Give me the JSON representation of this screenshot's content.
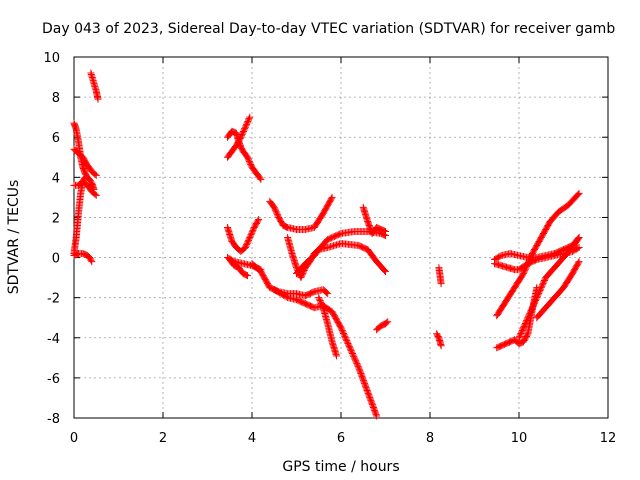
{
  "chart_data": {
    "type": "scatter",
    "title": "Day 043 of 2023, Sidereal Day-to-day VTEC variation (SDTVAR) for receiver gamb",
    "xlabel": "GPS time / hours",
    "ylabel": "SDTVAR / TECUs",
    "xlim": [
      0,
      12
    ],
    "ylim": [
      -8,
      10
    ],
    "xticks": [
      0,
      2,
      4,
      6,
      8,
      10,
      12
    ],
    "yticks": [
      -8,
      -6,
      -4,
      -2,
      0,
      2,
      4,
      6,
      8,
      10
    ],
    "grid": true,
    "marker": "+",
    "color": "#ff0000",
    "series": [
      {
        "x": [
          0.0,
          0.05,
          0.1,
          0.15,
          0.2,
          0.25,
          0.3,
          0.35,
          0.4,
          0.45
        ],
        "y": [
          6.7,
          6.4,
          5.8,
          5.0,
          4.5,
          4.2,
          4.0,
          3.9,
          3.7,
          3.4
        ]
      },
      {
        "x": [
          0.0,
          0.1,
          0.2,
          0.3,
          0.4,
          0.5
        ],
        "y": [
          5.4,
          5.2,
          5.0,
          4.6,
          4.3,
          4.1
        ]
      },
      {
        "x": [
          0.0,
          0.1,
          0.2,
          0.3,
          0.4,
          0.5
        ],
        "y": [
          3.6,
          3.6,
          3.8,
          3.6,
          3.3,
          3.1
        ]
      },
      {
        "x": [
          0.0,
          0.05,
          0.1,
          0.15,
          0.2,
          0.25
        ],
        "y": [
          0.2,
          1.0,
          2.2,
          3.2,
          3.8,
          4.0
        ]
      },
      {
        "x": [
          0.0,
          0.1,
          0.2,
          0.3,
          0.35,
          0.4
        ],
        "y": [
          0.1,
          0.2,
          0.2,
          0.1,
          0.0,
          -0.2
        ]
      },
      {
        "x": [
          0.38,
          0.42,
          0.46,
          0.5,
          0.54
        ],
        "y": [
          9.2,
          8.9,
          8.6,
          8.3,
          7.9
        ]
      },
      {
        "x": [
          3.45,
          3.55,
          3.65,
          3.7,
          3.75,
          3.8,
          3.9,
          4.0,
          4.1,
          4.2
        ],
        "y": [
          6.0,
          6.3,
          6.2,
          5.8,
          5.5,
          5.3,
          5.0,
          4.5,
          4.2,
          3.9
        ]
      },
      {
        "x": [
          3.45,
          3.55,
          3.65,
          3.75,
          3.85,
          3.95
        ],
        "y": [
          5.0,
          5.3,
          5.6,
          6.0,
          6.5,
          7.0
        ]
      },
      {
        "x": [
          3.45,
          3.55,
          3.65,
          3.75,
          3.85,
          3.95,
          4.05,
          4.15
        ],
        "y": [
          1.5,
          0.8,
          0.5,
          0.3,
          0.5,
          1.0,
          1.5,
          1.9
        ]
      },
      {
        "x": [
          3.45,
          3.6,
          3.8,
          4.0,
          4.2
        ],
        "y": [
          0.0,
          -0.2,
          -0.3,
          -0.4,
          -0.6
        ]
      },
      {
        "x": [
          3.5,
          3.6,
          3.7,
          3.8,
          3.9
        ],
        "y": [
          -0.1,
          -0.4,
          -0.5,
          -0.8,
          -0.9
        ]
      },
      {
        "x": [
          4.4,
          4.5,
          4.6,
          4.7,
          4.8,
          5.0,
          5.2,
          5.4,
          5.6,
          5.8
        ],
        "y": [
          2.8,
          2.5,
          2.0,
          1.6,
          1.5,
          1.4,
          1.4,
          1.5,
          2.2,
          3.0
        ]
      },
      {
        "x": [
          4.8,
          4.9,
          5.0,
          5.1,
          5.2,
          5.3,
          5.4,
          5.5,
          5.7,
          6.0,
          6.4,
          6.6,
          6.8,
          7.0
        ],
        "y": [
          1.0,
          0.2,
          -0.5,
          -1.0,
          -0.5,
          -0.2,
          0.2,
          0.4,
          0.5,
          0.7,
          0.6,
          0.4,
          -0.2,
          -0.7
        ]
      },
      {
        "x": [
          5.0,
          5.2,
          5.4,
          5.5,
          5.7,
          6.0,
          6.3,
          6.6,
          6.9,
          7.0
        ],
        "y": [
          -0.8,
          -0.3,
          0.1,
          0.4,
          0.9,
          1.2,
          1.3,
          1.3,
          1.2,
          1.1
        ]
      },
      {
        "x": [
          4.0,
          4.2,
          4.4,
          4.6,
          4.8,
          5.0,
          5.2,
          5.4,
          5.6,
          5.7
        ],
        "y": [
          -0.3,
          -0.7,
          -1.5,
          -1.7,
          -1.8,
          -1.8,
          -1.9,
          -1.7,
          -1.6,
          -1.8
        ]
      },
      {
        "x": [
          4.5,
          4.8,
          5.0,
          5.2,
          5.4,
          5.6,
          5.8,
          6.0,
          6.2,
          6.4,
          6.6,
          6.8
        ],
        "y": [
          -1.6,
          -2.0,
          -2.1,
          -2.3,
          -2.5,
          -2.4,
          -2.7,
          -3.5,
          -4.5,
          -5.5,
          -6.7,
          -7.9
        ]
      },
      {
        "x": [
          5.5,
          5.6,
          5.7,
          5.8,
          5.9
        ],
        "y": [
          -2.0,
          -2.5,
          -3.3,
          -4.2,
          -4.9
        ]
      },
      {
        "x": [
          6.5,
          6.6,
          6.7,
          6.8,
          6.9,
          7.0
        ],
        "y": [
          2.5,
          1.8,
          1.2,
          1.5,
          1.4,
          1.3
        ]
      },
      {
        "x": [
          6.8,
          6.9,
          7.0,
          7.05
        ],
        "y": [
          -3.6,
          -3.4,
          -3.3,
          -3.2
        ]
      },
      {
        "x": [
          8.2,
          8.25
        ],
        "y": [
          -0.5,
          -1.3
        ]
      },
      {
        "x": [
          8.15,
          8.2,
          8.25
        ],
        "y": [
          -3.8,
          -4.0,
          -4.4
        ]
      },
      {
        "x": [
          9.45,
          9.6,
          9.75,
          9.9,
          10.0,
          10.2,
          10.4,
          10.6,
          10.8,
          11.0,
          11.2,
          11.35
        ],
        "y": [
          -0.3,
          -0.4,
          -0.5,
          -0.6,
          -0.6,
          -0.3,
          -0.1,
          0.0,
          0.1,
          0.2,
          0.3,
          0.5
        ]
      },
      {
        "x": [
          9.45,
          9.6,
          9.8,
          10.0,
          10.2,
          10.4,
          10.6,
          10.8,
          11.0,
          11.2,
          11.35
        ],
        "y": [
          -0.1,
          0.1,
          0.2,
          0.1,
          0.0,
          0.0,
          0.1,
          0.2,
          0.4,
          0.6,
          1.0
        ]
      },
      {
        "x": [
          9.5,
          9.7,
          9.9,
          10.1,
          10.3,
          10.5,
          10.7,
          10.9,
          11.1,
          11.35
        ],
        "y": [
          -2.9,
          -2.2,
          -1.5,
          -0.8,
          0.2,
          1.0,
          1.8,
          2.3,
          2.6,
          3.2
        ]
      },
      {
        "x": [
          9.5,
          9.7,
          9.9,
          10.0,
          10.1,
          10.2,
          10.3,
          10.4
        ],
        "y": [
          -4.5,
          -4.3,
          -4.1,
          -4.3,
          -4.2,
          -3.8,
          -2.6,
          -1.5
        ]
      },
      {
        "x": [
          10.0,
          10.2,
          10.4,
          10.6,
          10.8,
          11.0,
          11.2,
          11.35
        ],
        "y": [
          -4.0,
          -3.0,
          -2.0,
          -1.0,
          -0.5,
          0.0,
          0.5,
          1.0
        ]
      },
      {
        "x": [
          10.4,
          10.6,
          10.8,
          11.0,
          11.2,
          11.35
        ],
        "y": [
          -3.0,
          -2.5,
          -2.0,
          -1.5,
          -0.8,
          -0.2
        ]
      }
    ]
  }
}
